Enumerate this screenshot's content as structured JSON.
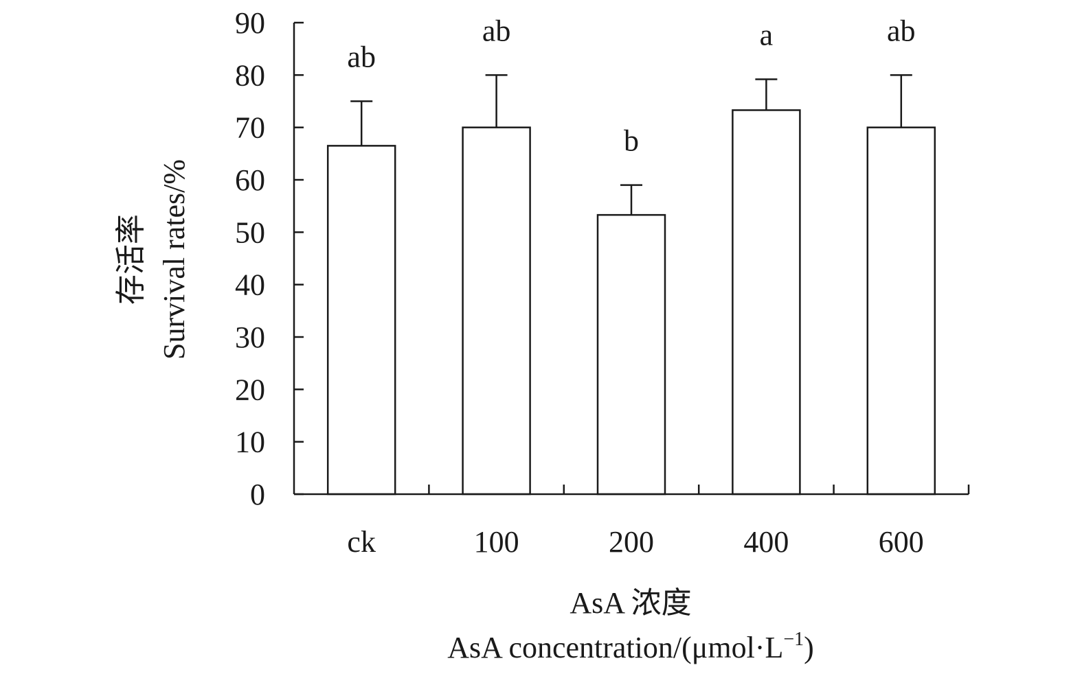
{
  "chart_data": {
    "type": "bar",
    "categories": [
      "ck",
      "100",
      "200",
      "400",
      "600"
    ],
    "values": [
      66.5,
      70.0,
      53.3,
      73.3,
      70.0
    ],
    "error_upper": [
      75.0,
      80.0,
      59.0,
      79.2,
      80.0
    ],
    "significance": [
      "ab",
      "ab",
      "b",
      "a",
      "ab"
    ],
    "ylim": [
      0,
      90
    ],
    "yticks": [
      "0",
      "10",
      "20",
      "30",
      "40",
      "50",
      "60",
      "70",
      "80",
      "90"
    ],
    "ylabel_cn": "存活率",
    "ylabel_en": "Survival rates/%",
    "xlabel_cn": "AsA 浓度",
    "xlabel_en": "AsA concentration/(μmol·L",
    "xlabel_en_sup": "−1",
    "xlabel_en_end": ")",
    "grid": false,
    "bar_fill": "#ffffff",
    "bar_stroke": "#1a1a1a"
  }
}
